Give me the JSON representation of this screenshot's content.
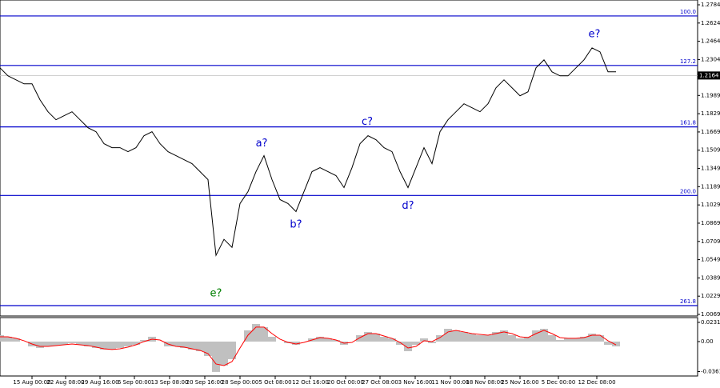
{
  "chart_data": [
    {
      "type": "line",
      "color": "#000000",
      "values": [
        1.2231,
        1.2161,
        1.2126,
        1.2091,
        1.2091,
        1.1951,
        1.1846,
        1.1776,
        1.1811,
        1.1846,
        1.1776,
        1.1706,
        1.1671,
        1.1566,
        1.1531,
        1.1531,
        1.1496,
        1.1531,
        1.1636,
        1.1671,
        1.1566,
        1.1496,
        1.1461,
        1.1426,
        1.1391,
        1.1321,
        1.1251,
        1.0587,
        1.0727,
        1.0657,
        1.1041,
        1.1146,
        1.1321,
        1.1461,
        1.1251,
        1.1076,
        1.1041,
        1.0971,
        1.1146,
        1.1321,
        1.1356,
        1.1321,
        1.1286,
        1.1181,
        1.1356,
        1.1566,
        1.1636,
        1.1601,
        1.1531,
        1.1496,
        1.1321,
        1.1181,
        1.1356,
        1.1531,
        1.1391,
        1.1671,
        1.1776,
        1.1846,
        1.1916,
        1.1881,
        1.1846,
        1.1916,
        1.2056,
        1.2126,
        1.2056,
        1.1986,
        1.2021,
        1.2231,
        1.2301,
        1.2196,
        1.2161,
        1.2161,
        1.2231,
        1.2301,
        1.2406,
        1.2371,
        1.2196,
        1.2196
      ],
      "xlim": [
        0,
        87.2
      ],
      "ylim": [
        1.0055,
        1.2826
      ],
      "yticks": [
        1.2784,
        1.2624,
        1.2464,
        1.2304,
        1.1989,
        1.1829,
        1.1669,
        1.1509,
        1.1349,
        1.1189,
        1.1029,
        1.0869,
        1.0709,
        1.0549,
        1.0389,
        1.0229,
        1.0069
      ],
      "xticks": [
        {
          "value": 4,
          "label": "15 Aug 00:00"
        },
        {
          "value": 8.2,
          "label": "22 Aug 08:00"
        },
        {
          "value": 12.5,
          "label": "29 Aug 16:00"
        },
        {
          "value": 16.8,
          "label": "6 Sep 00:00"
        },
        {
          "value": 21.2,
          "label": "13 Sep 08:00"
        },
        {
          "value": 25.6,
          "label": "20 Sep 16:00"
        },
        {
          "value": 30,
          "label": "28 Sep 00:00"
        },
        {
          "value": 34.4,
          "label": "5 Oct 08:00"
        },
        {
          "value": 38.8,
          "label": "12 Oct 16:00"
        },
        {
          "value": 43.2,
          "label": "20 Oct 00:00"
        },
        {
          "value": 47.5,
          "label": "27 Oct 08:00"
        },
        {
          "value": 51.9,
          "label": "3 Nov 16:00"
        },
        {
          "value": 56.3,
          "label": "11 Nov 00:00"
        },
        {
          "value": 60.6,
          "label": "18 Nov 08:00"
        },
        {
          "value": 65,
          "label": "25 Nov 16:00"
        },
        {
          "value": 69.8,
          "label": "5 Dec 00:00"
        },
        {
          "value": 74.6,
          "label": "12 Dec 08:00"
        }
      ],
      "level_color": "#0000cc",
      "levels": [
        {
          "value": 1.2686,
          "label": "100.0"
        },
        {
          "value": 1.2252,
          "label": "127.2"
        },
        {
          "value": 1.1713,
          "label": "161.8"
        },
        {
          "value": 1.1112,
          "label": "200.0"
        },
        {
          "value": 1.0146,
          "label": "261.8"
        }
      ],
      "current_price": 1.2164,
      "annotations": [
        {
          "text": "e?",
          "x": 27,
          "y": 1.0251,
          "color": "#008000"
        },
        {
          "text": "a?",
          "x": 32.7,
          "y": 1.1566,
          "color": "#0000cc"
        },
        {
          "text": "b?",
          "x": 37,
          "y": 1.0853,
          "color": "#0000cc"
        },
        {
          "text": "c?",
          "x": 45.9,
          "y": 1.1755,
          "color": "#0000cc"
        },
        {
          "text": "d?",
          "x": 51,
          "y": 1.1021,
          "color": "#0000cc"
        },
        {
          "text": "e?",
          "x": 74.3,
          "y": 1.2525,
          "color": "#0000cc"
        }
      ]
    },
    {
      "type": "bar",
      "color": "#c0c0c0",
      "values": [
        0.0077,
        0.0058,
        0.0039,
        0,
        -0.0058,
        -0.0077,
        -0.0058,
        -0.0048,
        -0.0039,
        -0.0019,
        -0.0039,
        -0.0058,
        -0.0077,
        -0.0096,
        -0.0096,
        -0.0077,
        -0.0058,
        -0.0039,
        0.0019,
        0.0058,
        0,
        -0.0058,
        -0.0058,
        -0.0077,
        -0.0096,
        -0.0116,
        -0.0174,
        -0.0366,
        -0.0289,
        -0.0212,
        0,
        0.0135,
        0.0212,
        0.0174,
        0.0058,
        0,
        -0.0019,
        -0.0039,
        0,
        0.0039,
        0.0058,
        0.0039,
        0.0019,
        -0.0039,
        0,
        0.0077,
        0.0116,
        0.0096,
        0.0058,
        0.0039,
        -0.0039,
        -0.0116,
        -0.0039,
        0.0039,
        -0.0019,
        0.0077,
        0.0154,
        0.0135,
        0.0116,
        0.0096,
        0.0077,
        0.0077,
        0.0116,
        0.0135,
        0.0077,
        0.0039,
        0.0058,
        0.0135,
        0.0154,
        0.0077,
        0.0019,
        0.0039,
        0.0039,
        0.0058,
        0.0096,
        0.0077,
        -0.0039,
        -0.0058
      ],
      "signal": {
        "color": "#ff0000",
        "values": [
          0.0058,
          0.0058,
          0.0039,
          0.001,
          -0.0029,
          -0.0058,
          -0.0058,
          -0.0048,
          -0.0039,
          -0.0029,
          -0.0039,
          -0.0048,
          -0.0067,
          -0.0087,
          -0.0096,
          -0.0087,
          -0.0067,
          -0.0039,
          0,
          0.0029,
          0.0019,
          -0.0029,
          -0.0058,
          -0.0067,
          -0.0087,
          -0.0106,
          -0.0145,
          -0.027,
          -0.0289,
          -0.0241,
          -0.0077,
          0.0077,
          0.0174,
          0.0174,
          0.0096,
          0.0029,
          -0.001,
          -0.0029,
          -0.001,
          0.0019,
          0.0048,
          0.0039,
          0.0019,
          -0.0019,
          -0.001,
          0.0048,
          0.0096,
          0.0096,
          0.0067,
          0.0039,
          -0.001,
          -0.0077,
          -0.0058,
          0.001,
          0,
          0.0048,
          0.0116,
          0.0135,
          0.0116,
          0.0096,
          0.0087,
          0.0077,
          0.0096,
          0.0116,
          0.0096,
          0.0058,
          0.0048,
          0.0096,
          0.0135,
          0.0096,
          0.0048,
          0.0039,
          0.0039,
          0.0048,
          0.0077,
          0.0077,
          0.001,
          -0.0039
        ]
      },
      "xlim": [
        0,
        87.2
      ],
      "ylim": [
        -0.0415,
        0.0289
      ],
      "yticks": [
        0.02314,
        {
          "value": 0,
          "label": "0.00"
        },
        -0.03619
      ]
    }
  ]
}
